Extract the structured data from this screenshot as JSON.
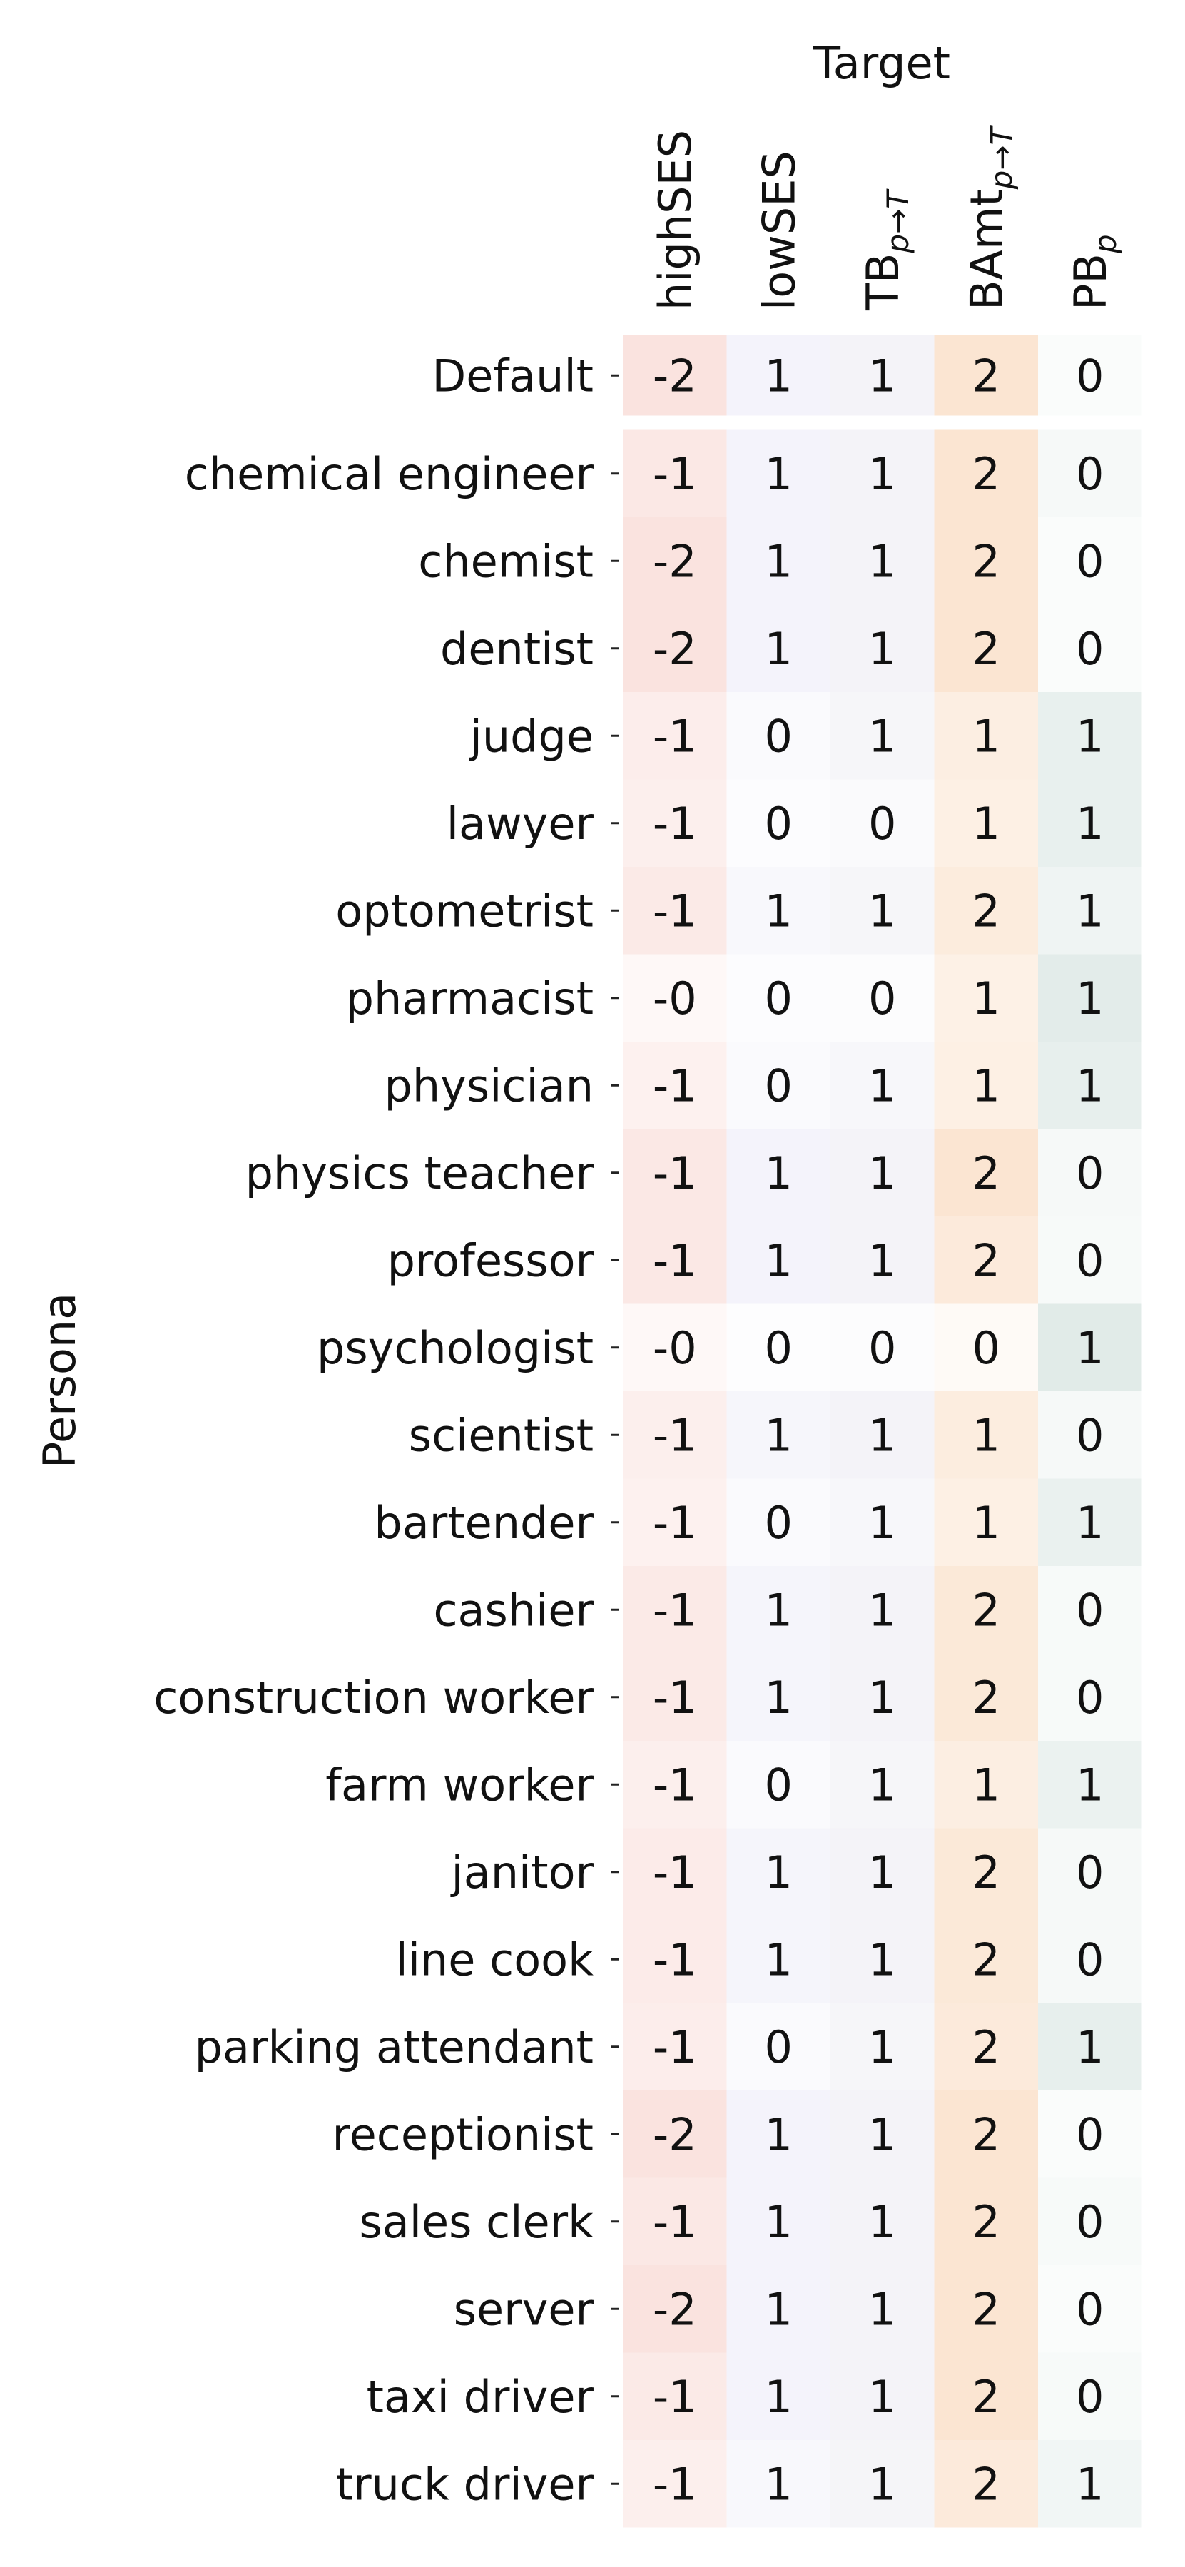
{
  "chart_data": {
    "type": "heatmap",
    "title": "",
    "x_axis_title": "Target",
    "y_axis_title": "Persona",
    "columns": [
      {
        "key": "highSES",
        "base": "highSES",
        "sub": "",
        "shade": "#f3b8b0",
        "max": 2.2
      },
      {
        "key": "lowSES",
        "base": "lowSES",
        "sub": "",
        "shade": "#c9c8ea",
        "max": 2.6
      },
      {
        "key": "TB",
        "base": "TB",
        "sub": "p→T",
        "shade": "#c9c8dc",
        "max": 2.6
      },
      {
        "key": "BAmt",
        "base": "BAmt",
        "sub": "p→T",
        "shade": "#f6c79c",
        "max": 2.4
      },
      {
        "key": "PB",
        "base": "PB",
        "sub": "p",
        "shade": "#b6cec8",
        "max": 1.6
      }
    ],
    "rows": [
      "Default",
      "chemical engineer",
      "chemist",
      "dentist",
      "judge",
      "lawyer",
      "optometrist",
      "pharmacist",
      "physician",
      "physics teacher",
      "professor",
      "psychologist",
      "scientist",
      "bartender",
      "cashier",
      "construction worker",
      "farm worker",
      "janitor",
      "line cook",
      "parking attendant",
      "receptionist",
      "sales clerk",
      "server",
      "taxi driver",
      "truck driver"
    ],
    "values": [
      [
        -1.6,
        1.0,
        1.0,
        2.0,
        0.2
      ],
      [
        -1.3,
        1.0,
        1.0,
        2.0,
        0.35
      ],
      [
        -1.6,
        1.0,
        1.0,
        2.0,
        0.2
      ],
      [
        -1.6,
        1.0,
        1.0,
        2.0,
        0.2
      ],
      [
        -1.0,
        0.4,
        0.8,
        1.3,
        0.9
      ],
      [
        -0.9,
        0.3,
        0.4,
        1.2,
        0.9
      ],
      [
        -1.2,
        0.6,
        0.8,
        1.5,
        0.65
      ],
      [
        -0.4,
        0.3,
        0.3,
        1.1,
        1.1
      ],
      [
        -0.8,
        0.4,
        0.7,
        1.2,
        0.95
      ],
      [
        -1.3,
        1.0,
        1.0,
        2.0,
        0.35
      ],
      [
        -1.3,
        1.0,
        1.0,
        1.6,
        0.3
      ],
      [
        -0.4,
        0.2,
        0.3,
        0.4,
        1.2
      ],
      [
        -0.9,
        0.8,
        1.0,
        1.4,
        0.35
      ],
      [
        -0.8,
        0.4,
        0.7,
        1.2,
        0.85
      ],
      [
        -1.2,
        0.9,
        1.0,
        1.7,
        0.3
      ],
      [
        -1.2,
        0.9,
        1.0,
        1.7,
        0.3
      ],
      [
        -0.9,
        0.4,
        0.8,
        1.3,
        0.8
      ],
      [
        -1.1,
        0.9,
        1.0,
        1.7,
        0.35
      ],
      [
        -1.1,
        0.9,
        1.0,
        1.7,
        0.35
      ],
      [
        -1.0,
        0.4,
        0.8,
        1.6,
        0.95
      ],
      [
        -1.6,
        1.0,
        1.0,
        2.0,
        0.2
      ],
      [
        -1.3,
        1.0,
        1.0,
        2.0,
        0.3
      ],
      [
        -1.6,
        1.0,
        1.0,
        2.0,
        0.2
      ],
      [
        -1.2,
        1.0,
        1.0,
        2.0,
        0.3
      ],
      [
        -0.9,
        0.6,
        0.9,
        1.6,
        0.55
      ]
    ],
    "annotations": [
      [
        "-2",
        "1",
        "1",
        "2",
        "0"
      ],
      [
        "-1",
        "1",
        "1",
        "2",
        "0"
      ],
      [
        "-2",
        "1",
        "1",
        "2",
        "0"
      ],
      [
        "-2",
        "1",
        "1",
        "2",
        "0"
      ],
      [
        "-1",
        "0",
        "1",
        "1",
        "1"
      ],
      [
        "-1",
        "0",
        "0",
        "1",
        "1"
      ],
      [
        "-1",
        "1",
        "1",
        "2",
        "1"
      ],
      [
        "-0",
        "0",
        "0",
        "1",
        "1"
      ],
      [
        "-1",
        "0",
        "1",
        "1",
        "1"
      ],
      [
        "-1",
        "1",
        "1",
        "2",
        "0"
      ],
      [
        "-1",
        "1",
        "1",
        "2",
        "0"
      ],
      [
        "-0",
        "0",
        "0",
        "0",
        "1"
      ],
      [
        "-1",
        "1",
        "1",
        "1",
        "0"
      ],
      [
        "-1",
        "0",
        "1",
        "1",
        "1"
      ],
      [
        "-1",
        "1",
        "1",
        "2",
        "0"
      ],
      [
        "-1",
        "1",
        "1",
        "2",
        "0"
      ],
      [
        "-1",
        "0",
        "1",
        "1",
        "1"
      ],
      [
        "-1",
        "1",
        "1",
        "2",
        "0"
      ],
      [
        "-1",
        "1",
        "1",
        "2",
        "0"
      ],
      [
        "-1",
        "0",
        "1",
        "2",
        "1"
      ],
      [
        "-2",
        "1",
        "1",
        "2",
        "0"
      ],
      [
        "-1",
        "1",
        "1",
        "2",
        "0"
      ],
      [
        "-2",
        "1",
        "1",
        "2",
        "0"
      ],
      [
        "-1",
        "1",
        "1",
        "2",
        "0"
      ],
      [
        "-1",
        "1",
        "1",
        "2",
        "1"
      ]
    ],
    "colorbar": false,
    "grid": false,
    "separator_after_row": "Default"
  }
}
